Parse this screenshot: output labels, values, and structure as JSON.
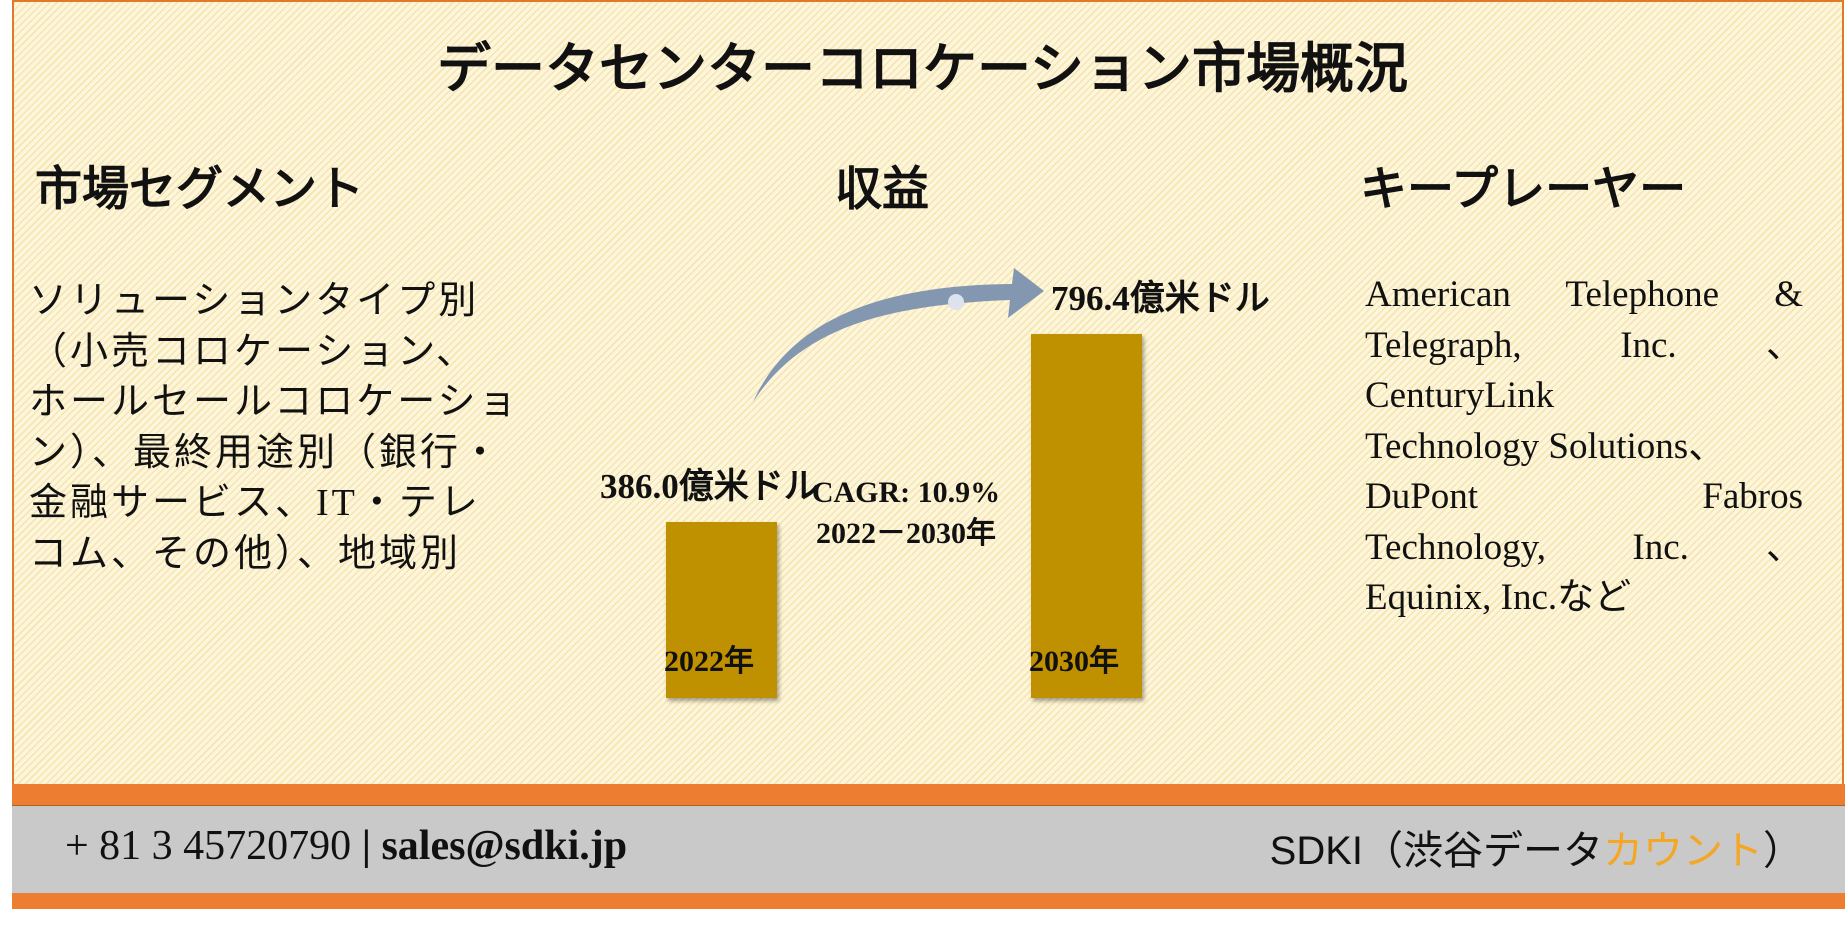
{
  "title": "データセンターコロケーション市場概況",
  "sections": {
    "segments": {
      "heading": "市場セグメント",
      "lines": [
        "ソリューションタイプ別",
        "（小売コロケーション、",
        "ホールセールコロケーショ",
        "ン）、最終用途別（銀行・",
        "金融サービス、IT・テレ",
        "コム、その他）、地域別"
      ]
    },
    "revenue": {
      "heading": "収益",
      "cagr": "CAGR: 10.9%",
      "period": "2022－2030年"
    },
    "players": {
      "heading": "キープレーヤー",
      "lines": [
        {
          "text": "American Telephone &",
          "justify": true
        },
        {
          "text": "Telegraph, Inc.、",
          "justify": true
        },
        {
          "text": "CenturyLink",
          "justify": false
        },
        {
          "text": "Technology Solutions、",
          "justify": false
        },
        {
          "text": "DuPont Fabros",
          "justify": true
        },
        {
          "text": "Technology, Inc.、",
          "justify": true
        },
        {
          "text": "Equinix, Inc.など",
          "justify": false
        }
      ]
    }
  },
  "chart_data": {
    "type": "bar",
    "categories": [
      "2022年",
      "2030年"
    ],
    "values": [
      386.0,
      796.4
    ],
    "value_labels": [
      "386.0億米ドル",
      "796.4億米ドル"
    ],
    "unit": "億米ドル",
    "annotation": "CAGR: 10.9% 2022－2030年",
    "bar_color": "#bf9000",
    "arrow_color": "#8497b0"
  },
  "footer": {
    "phone": "+ 81 3 45720790",
    "separator": "|",
    "email": "sales@sdki.jp",
    "brand_main": "SDKI（渋谷データ",
    "brand_accent": "カウント",
    "brand_close": "）",
    "accent_color": "#f5a623"
  }
}
